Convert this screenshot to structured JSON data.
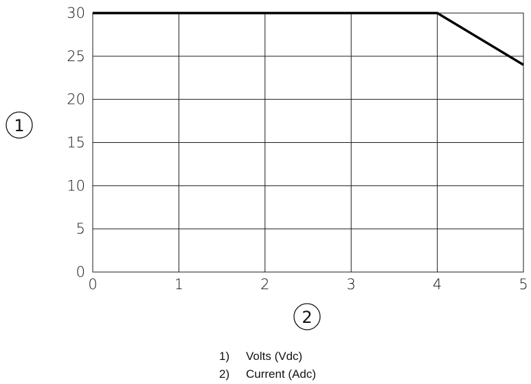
{
  "chart_data": {
    "type": "line",
    "x": [
      0,
      4,
      5
    ],
    "series": [
      {
        "values": [
          30,
          30,
          24
        ],
        "color": "#000000"
      }
    ],
    "xlim": [
      0,
      5
    ],
    "ylim": [
      0,
      30
    ],
    "x_ticks": [
      "0",
      "1",
      "2",
      "3",
      "4",
      "5"
    ],
    "y_ticks": [
      "0",
      "5",
      "10",
      "15",
      "20",
      "25",
      "30"
    ],
    "grid": true,
    "y_axis_marker": "1",
    "x_axis_marker": "2",
    "legend": [
      {
        "number": "1)",
        "label": "Volts (Vdc)"
      },
      {
        "number": "2)",
        "label": "Current (Adc)"
      }
    ]
  }
}
